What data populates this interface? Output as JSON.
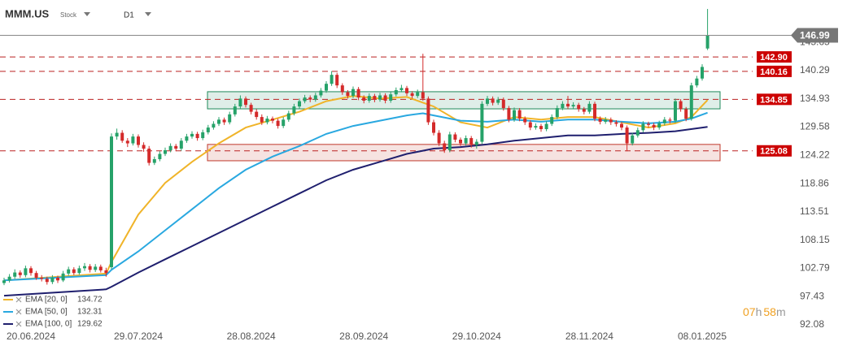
{
  "header": {
    "symbol": "MMM.US",
    "kind": "Stock",
    "interval": "D1"
  },
  "countdown": [
    "07",
    "h",
    "58",
    "m"
  ],
  "chart_data": {
    "type": "candlestick",
    "ylim": [
      91.3,
      153.7
    ],
    "yticks": [
      92.08,
      97.43,
      102.79,
      108.15,
      113.51,
      118.86,
      124.22,
      129.58,
      134.93,
      140.29,
      145.65
    ],
    "up_color": "#26a269",
    "down_color": "#d42a2a",
    "last_price": 146.99,
    "levels": [
      {
        "value": 142.9,
        "label": "142.90"
      },
      140.16,
      134.85,
      125.08
    ],
    "zones": [
      {
        "low": 133.05,
        "high": 136.3,
        "color": "#1e8a5a"
      },
      {
        "low": 123.2,
        "high": 126.3,
        "color": "#c0392b"
      }
    ],
    "categories": [
      null,
      null,
      null,
      null,
      null,
      "20.06.2024",
      null,
      null,
      null,
      null,
      null,
      null,
      null,
      null,
      null,
      null,
      null,
      null,
      null,
      null,
      null,
      null,
      null,
      null,
      null,
      "29.07.2024",
      null,
      null,
      null,
      null,
      null,
      null,
      null,
      null,
      null,
      null,
      null,
      null,
      null,
      null,
      null,
      null,
      null,
      null,
      null,
      null,
      "28.08.2024",
      null,
      null,
      null,
      null,
      null,
      null,
      null,
      null,
      null,
      null,
      null,
      null,
      null,
      null,
      null,
      null,
      null,
      null,
      null,
      null,
      "28.09.2024",
      null,
      null,
      null,
      null,
      null,
      null,
      null,
      null,
      null,
      null,
      null,
      null,
      null,
      null,
      null,
      null,
      null,
      null,
      null,
      null,
      "29.10.2024",
      null,
      null,
      null,
      null,
      null,
      null,
      null,
      null,
      null,
      null,
      null,
      null,
      null,
      null,
      null,
      null,
      null,
      null,
      null,
      null,
      "28.11.2024",
      null,
      null,
      null,
      null,
      null,
      null,
      null,
      null,
      null,
      null,
      null,
      null,
      null,
      null,
      null,
      null,
      null,
      null,
      null,
      null,
      "08.01.2025",
      null
    ],
    "candles": [
      [
        100.0,
        101.0,
        99.6,
        100.5
      ],
      [
        100.5,
        101.7,
        100.1,
        101.2
      ],
      [
        101.2,
        102.6,
        100.8,
        102.0
      ],
      [
        102.0,
        102.4,
        101.0,
        101.5
      ],
      [
        101.5,
        103.3,
        101.1,
        102.8
      ],
      [
        102.8,
        103.2,
        101.4,
        101.9
      ],
      [
        101.9,
        102.3,
        100.6,
        101.0
      ],
      [
        101.0,
        101.5,
        100.3,
        100.8
      ],
      [
        100.8,
        101.2,
        99.7,
        100.2
      ],
      [
        100.2,
        101.5,
        99.8,
        101.0
      ],
      [
        101.0,
        101.4,
        100.0,
        100.5
      ],
      [
        100.5,
        102.3,
        100.2,
        101.8
      ],
      [
        101.8,
        103.1,
        101.4,
        102.6
      ],
      [
        102.6,
        103.0,
        101.5,
        101.9
      ],
      [
        101.9,
        103.3,
        101.6,
        102.8
      ],
      [
        102.8,
        103.8,
        102.3,
        103.2
      ],
      [
        103.2,
        103.6,
        102.0,
        102.5
      ],
      [
        102.5,
        103.6,
        102.1,
        103.1
      ],
      [
        103.1,
        103.5,
        102.0,
        102.4
      ],
      [
        102.4,
        102.9,
        101.2,
        101.9
      ],
      [
        103.0,
        128.4,
        102.6,
        127.8
      ],
      [
        127.8,
        129.3,
        127.2,
        128.5
      ],
      [
        128.5,
        129.0,
        126.6,
        127.0
      ],
      [
        127.0,
        127.5,
        125.8,
        126.5
      ],
      [
        126.5,
        128.3,
        126.1,
        127.8
      ],
      [
        127.8,
        128.2,
        125.7,
        126.2
      ],
      [
        126.2,
        126.7,
        124.9,
        125.5
      ],
      [
        125.5,
        126.0,
        122.3,
        122.8
      ],
      [
        122.8,
        124.0,
        122.4,
        123.5
      ],
      [
        123.5,
        125.0,
        123.1,
        124.5
      ],
      [
        124.5,
        125.7,
        124.1,
        125.2
      ],
      [
        125.2,
        126.5,
        124.8,
        126.0
      ],
      [
        126.0,
        126.4,
        125.0,
        125.5
      ],
      [
        125.5,
        127.5,
        125.1,
        127.0
      ],
      [
        127.0,
        128.3,
        126.6,
        127.8
      ],
      [
        127.8,
        128.8,
        127.4,
        128.3
      ],
      [
        128.3,
        128.7,
        127.0,
        127.5
      ],
      [
        127.5,
        129.1,
        127.1,
        128.6
      ],
      [
        128.6,
        130.0,
        128.2,
        129.5
      ],
      [
        129.5,
        130.7,
        129.1,
        130.2
      ],
      [
        130.2,
        131.5,
        129.8,
        131.0
      ],
      [
        131.0,
        131.4,
        130.0,
        130.5
      ],
      [
        130.5,
        132.5,
        130.1,
        132.0
      ],
      [
        132.0,
        134.0,
        131.6,
        133.5
      ],
      [
        133.5,
        135.6,
        133.1,
        135.0
      ],
      [
        135.0,
        135.4,
        133.3,
        133.8
      ],
      [
        133.8,
        134.2,
        132.0,
        132.5
      ],
      [
        132.5,
        133.0,
        131.0,
        131.5
      ],
      [
        131.5,
        132.0,
        130.0,
        130.5
      ],
      [
        130.5,
        131.7,
        130.1,
        131.2
      ],
      [
        131.2,
        131.6,
        130.3,
        130.8
      ],
      [
        130.8,
        131.2,
        129.3,
        129.8
      ],
      [
        129.8,
        131.5,
        129.4,
        131.0
      ],
      [
        131.0,
        132.7,
        130.6,
        132.2
      ],
      [
        132.2,
        134.0,
        131.8,
        133.5
      ],
      [
        133.5,
        135.0,
        133.1,
        134.5
      ],
      [
        134.5,
        135.7,
        134.1,
        135.2
      ],
      [
        135.2,
        135.6,
        134.3,
        134.8
      ],
      [
        134.8,
        136.1,
        134.4,
        135.6
      ],
      [
        135.6,
        137.0,
        135.2,
        136.5
      ],
      [
        136.5,
        138.3,
        136.1,
        137.8
      ],
      [
        137.8,
        140.2,
        137.4,
        139.5
      ],
      [
        139.5,
        139.9,
        137.0,
        137.5
      ],
      [
        137.5,
        137.9,
        135.7,
        136.2
      ],
      [
        136.2,
        136.6,
        135.0,
        135.5
      ],
      [
        135.5,
        137.3,
        135.1,
        136.8
      ],
      [
        136.8,
        137.2,
        134.7,
        135.2
      ],
      [
        135.2,
        135.6,
        134.1,
        134.6
      ],
      [
        134.6,
        136.0,
        134.2,
        135.5
      ],
      [
        135.5,
        135.9,
        134.3,
        134.8
      ],
      [
        134.8,
        136.1,
        134.4,
        135.6
      ],
      [
        135.6,
        136.0,
        134.1,
        134.6
      ],
      [
        134.6,
        136.3,
        134.2,
        135.8
      ],
      [
        135.8,
        137.1,
        135.4,
        136.6
      ],
      [
        136.6,
        137.6,
        136.2,
        137.0
      ],
      [
        137.0,
        137.4,
        135.5,
        136.0
      ],
      [
        136.0,
        136.4,
        135.0,
        135.5
      ],
      [
        135.5,
        136.7,
        135.1,
        136.2
      ],
      [
        136.2,
        143.5,
        134.6,
        135.0
      ],
      [
        135.0,
        135.4,
        130.0,
        130.5
      ],
      [
        130.5,
        131.0,
        128.0,
        128.5
      ],
      [
        128.5,
        129.0,
        126.0,
        126.5
      ],
      [
        126.5,
        127.0,
        124.7,
        125.2
      ],
      [
        125.2,
        128.7,
        124.8,
        128.2
      ],
      [
        128.2,
        128.6,
        126.7,
        127.2
      ],
      [
        127.2,
        127.6,
        126.0,
        126.5
      ],
      [
        126.5,
        128.0,
        126.1,
        127.5
      ],
      [
        127.5,
        127.9,
        125.7,
        126.2
      ],
      [
        126.2,
        127.3,
        125.5,
        126.8
      ],
      [
        126.8,
        134.5,
        126.4,
        134.0
      ],
      [
        134.0,
        135.5,
        133.6,
        135.0
      ],
      [
        135.0,
        135.4,
        133.7,
        134.2
      ],
      [
        134.2,
        135.3,
        133.8,
        134.8
      ],
      [
        134.8,
        135.2,
        132.7,
        133.2
      ],
      [
        133.2,
        133.6,
        130.5,
        131.0
      ],
      [
        131.0,
        133.3,
        130.6,
        132.8
      ],
      [
        132.8,
        133.2,
        130.7,
        131.2
      ],
      [
        131.2,
        131.6,
        130.0,
        130.5
      ],
      [
        130.5,
        130.9,
        129.0,
        129.5
      ],
      [
        129.5,
        130.3,
        129.1,
        129.8
      ],
      [
        129.8,
        130.2,
        128.7,
        129.2
      ],
      [
        129.2,
        130.7,
        128.8,
        130.2
      ],
      [
        130.2,
        132.0,
        129.8,
        131.5
      ],
      [
        131.5,
        133.7,
        131.1,
        133.2
      ],
      [
        133.2,
        134.5,
        132.8,
        134.0
      ],
      [
        134.0,
        135.5,
        133.0,
        133.5
      ],
      [
        133.5,
        134.3,
        133.1,
        133.8
      ],
      [
        133.8,
        134.2,
        132.5,
        133.0
      ],
      [
        133.0,
        133.4,
        132.0,
        132.5
      ],
      [
        132.5,
        134.5,
        132.1,
        134.0
      ],
      [
        134.0,
        134.4,
        130.7,
        131.2
      ],
      [
        131.2,
        131.6,
        130.1,
        130.6
      ],
      [
        130.6,
        131.5,
        130.2,
        131.0
      ],
      [
        131.0,
        131.4,
        130.0,
        130.5
      ],
      [
        130.5,
        130.9,
        129.7,
        130.2
      ],
      [
        130.2,
        130.6,
        129.0,
        129.5
      ],
      [
        129.5,
        129.9,
        125.0,
        126.5
      ],
      [
        126.5,
        128.5,
        126.1,
        128.0
      ],
      [
        128.0,
        129.5,
        127.6,
        129.0
      ],
      [
        129.0,
        130.7,
        128.6,
        130.2
      ],
      [
        130.2,
        130.6,
        129.5,
        130.0
      ],
      [
        130.0,
        130.4,
        129.0,
        129.5
      ],
      [
        129.5,
        130.8,
        129.1,
        130.3
      ],
      [
        130.3,
        131.5,
        129.9,
        131.0
      ],
      [
        131.0,
        131.4,
        130.3,
        130.8
      ],
      [
        130.8,
        135.0,
        130.4,
        134.5
      ],
      [
        134.5,
        134.9,
        132.5,
        133.0
      ],
      [
        133.0,
        133.4,
        130.7,
        131.2
      ],
      [
        131.2,
        138.0,
        130.8,
        137.5
      ],
      [
        137.5,
        139.3,
        137.1,
        138.8
      ],
      [
        138.8,
        141.5,
        138.4,
        141.0
      ],
      [
        144.5,
        152.0,
        144.2,
        146.99
      ]
    ],
    "series": [
      {
        "name": "EMA [20, 0]",
        "last": 134.72,
        "color": "#f0b429",
        "x": [
          0,
          19,
          20,
          25,
          30,
          35,
          40,
          45,
          50,
          55,
          60,
          65,
          70,
          75,
          80,
          85,
          90,
          95,
          100,
          105,
          110,
          115,
          120,
          125,
          128,
          131
        ],
        "values": [
          100.5,
          101.8,
          104,
          113,
          119,
          123,
          126.5,
          129.5,
          131,
          132.5,
          134.5,
          135.5,
          135,
          135.3,
          133.5,
          130.5,
          129.5,
          131.5,
          131,
          131.5,
          131.5,
          130.5,
          129.5,
          130.3,
          131.5,
          134.72
        ]
      },
      {
        "name": "EMA [50, 0]",
        "last": 132.31,
        "color": "#29a8e0",
        "x": [
          0,
          19,
          20,
          25,
          30,
          35,
          40,
          45,
          50,
          55,
          60,
          65,
          70,
          75,
          78,
          80,
          85,
          90,
          95,
          100,
          105,
          110,
          115,
          120,
          125,
          128,
          131
        ],
        "values": [
          100.5,
          101.5,
          102.5,
          106,
          110,
          114,
          118,
          121.5,
          124,
          126,
          128.3,
          129.8,
          130.8,
          131.8,
          132.2,
          131.8,
          130.8,
          130.6,
          131,
          130.6,
          131,
          131,
          130.6,
          130.3,
          130.6,
          131.2,
          132.31
        ]
      },
      {
        "name": "EMA [100, 0]",
        "last": 129.62,
        "color": "#1f1f6e",
        "x": [
          0,
          19,
          20,
          25,
          30,
          35,
          40,
          45,
          50,
          55,
          60,
          65,
          70,
          75,
          80,
          85,
          90,
          95,
          100,
          105,
          110,
          115,
          120,
          125,
          131
        ],
        "values": [
          97.6,
          98.8,
          99.3,
          102,
          104.5,
          107,
          109.5,
          112,
          114.5,
          117,
          119.5,
          121.5,
          123,
          124.5,
          125.5,
          125.8,
          126.3,
          127,
          127.5,
          128,
          128,
          128.3,
          128.5,
          128.8,
          129.62
        ]
      }
    ]
  }
}
